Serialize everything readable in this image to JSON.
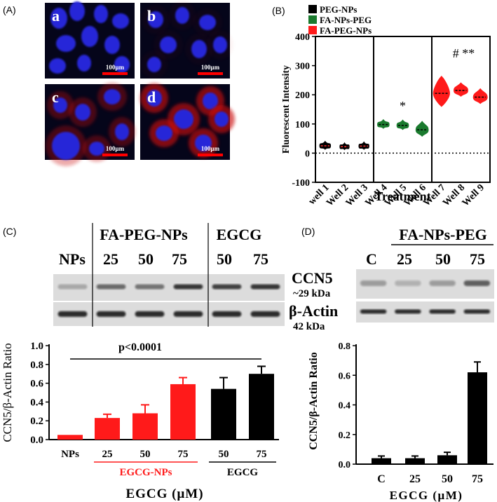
{
  "panels": {
    "A": {
      "label": "(A)",
      "images": [
        {
          "letter": "a",
          "scale_bar": "100µm",
          "red": 0.0
        },
        {
          "letter": "b",
          "scale_bar": "100µm",
          "red": 0.05
        },
        {
          "letter": "c",
          "scale_bar": "100µm",
          "red": 0.45
        },
        {
          "letter": "d",
          "scale_bar": "100µm",
          "red": 0.85
        }
      ]
    },
    "B": {
      "label": "(B)",
      "legend": [
        {
          "name": "PEG-NPs",
          "color": "#000000"
        },
        {
          "name": "FA-NPs-PEG",
          "color": "#1a7a2e"
        },
        {
          "name": "FA-PEG-NPs",
          "color": "#ff1a1a"
        }
      ],
      "annotations": {
        "well5": "*",
        "group3": "# **"
      }
    },
    "C": {
      "label": "(C)",
      "blot_headers": {
        "col1": "NPs",
        "group1": "FA-PEG-NPs",
        "group2": "EGCG"
      },
      "blot_lanes": [
        "25",
        "50",
        "75",
        "50",
        "75"
      ],
      "blot_labels": {
        "ccn5": "CCN5",
        "ccn5_kda": "~29 kDa",
        "actin": "β-Actin",
        "actin_kda": "42 kDa"
      },
      "significance": "p<0.0001",
      "group_labels": {
        "egcg_nps": "EGCG-NPs",
        "egcg": "EGCG"
      }
    },
    "D": {
      "label": "(D)",
      "blot_header": "FA-NPs-PEG",
      "blot_lanes": [
        "C",
        "25",
        "50",
        "75"
      ]
    }
  },
  "chart_data": [
    {
      "type": "violin",
      "panel": "B",
      "ylabel": "Fluorescent Intensity",
      "xlabel": "Treatment",
      "ylim": [
        -100,
        400
      ],
      "yticks": [
        -100,
        0,
        100,
        200,
        300,
        400
      ],
      "categories": [
        "well 1",
        "Well 2",
        "Well 3",
        "Well 4",
        "Well 5",
        "Well 6",
        "Well 7",
        "Well 8",
        "Well 9"
      ],
      "series": [
        {
          "name": "PEG-NPs",
          "color": "#000000",
          "medians": [
            25,
            22,
            24
          ]
        },
        {
          "name": "FA-NPs-PEG",
          "color": "#1a7a2e",
          "medians": [
            98,
            95,
            80
          ]
        },
        {
          "name": "FA-PEG-NPs",
          "color": "#ff1a1a",
          "medians": [
            205,
            215,
            192
          ]
        }
      ]
    },
    {
      "type": "bar",
      "panel": "C",
      "ylabel": "CCN5/β-Actin Ratio",
      "xlabel": "EGCG (μM)",
      "ylim": [
        0,
        1.0
      ],
      "yticks": [
        "0.0",
        "0.2",
        "0.4",
        "0.6",
        "0.8",
        "1.0"
      ],
      "categories": [
        "NPs",
        "25",
        "50",
        "75",
        "50",
        "75"
      ],
      "values": [
        0.05,
        0.23,
        0.28,
        0.59,
        0.54,
        0.7
      ],
      "errors": [
        0.0,
        0.04,
        0.09,
        0.07,
        0.12,
        0.08
      ],
      "colors": [
        "#ff1a1a",
        "#ff1a1a",
        "#ff1a1a",
        "#ff1a1a",
        "#000000",
        "#000000"
      ]
    },
    {
      "type": "bar",
      "panel": "D",
      "ylabel": "CCN5/β-Actin Ratio",
      "xlabel": "EGCG (μM)",
      "ylim": [
        0,
        0.8
      ],
      "yticks": [
        "0.0",
        "0.2",
        "0.4",
        "0.6",
        "0.8"
      ],
      "categories": [
        "C",
        "25",
        "50",
        "75"
      ],
      "values": [
        0.04,
        0.04,
        0.06,
        0.62
      ],
      "errors": [
        0.015,
        0.015,
        0.02,
        0.07
      ],
      "colors": [
        "#000000",
        "#000000",
        "#000000",
        "#000000"
      ]
    }
  ]
}
